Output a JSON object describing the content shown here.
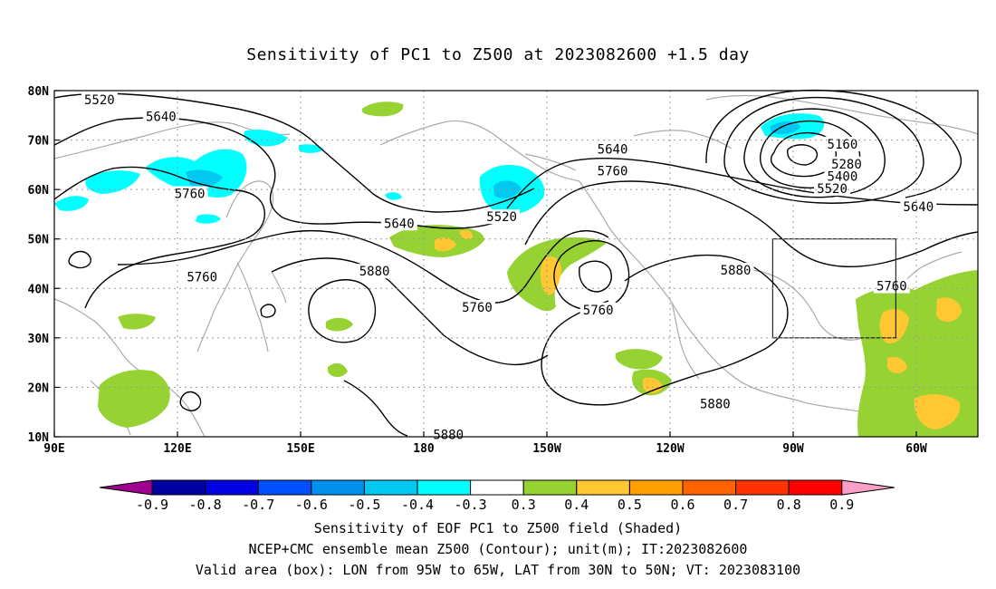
{
  "chart_data": {
    "type": "contour",
    "title": "Sensitivity of PC1 to Z500 at 2023082600 +1.5 day",
    "x_ticks": [
      "90E",
      "120E",
      "150E",
      "180",
      "150W",
      "120W",
      "90W",
      "60W"
    ],
    "x_tick_lon": [
      90,
      120,
      150,
      180,
      210,
      240,
      270,
      300
    ],
    "y_ticks": [
      "80N",
      "70N",
      "60N",
      "50N",
      "40N",
      "30N",
      "20N",
      "10N"
    ],
    "y_tick_lat": [
      80,
      70,
      60,
      50,
      40,
      30,
      20,
      10
    ],
    "lon_range": [
      90,
      315
    ],
    "lat_range": [
      10,
      80
    ],
    "grid": true,
    "valid_box": {
      "lon": [
        265,
        295
      ],
      "lat": [
        30,
        50
      ]
    },
    "contour_labels": [
      {
        "text": "5520",
        "lon": 101,
        "lat": 78.2
      },
      {
        "text": "5640",
        "lon": 116,
        "lat": 74.8
      },
      {
        "text": "5760",
        "lon": 123,
        "lat": 59.2
      },
      {
        "text": "5640",
        "lon": 174,
        "lat": 53.2
      },
      {
        "text": "5760",
        "lon": 126,
        "lat": 42.3
      },
      {
        "text": "5880",
        "lon": 168,
        "lat": 43.5
      },
      {
        "text": "5520",
        "lon": 199,
        "lat": 54.5
      },
      {
        "text": "5760",
        "lon": 193,
        "lat": 36.2
      },
      {
        "text": "5760",
        "lon": 222.5,
        "lat": 35.7
      },
      {
        "text": "5640",
        "lon": 226,
        "lat": 68.2
      },
      {
        "text": "5760",
        "lon": 226,
        "lat": 63.8
      },
      {
        "text": "5880",
        "lon": 256,
        "lat": 43.7
      },
      {
        "text": "5880",
        "lon": 251,
        "lat": 16.7
      },
      {
        "text": "5880",
        "lon": 186,
        "lat": 10.5
      },
      {
        "text": "5160",
        "lon": 282,
        "lat": 69.2
      },
      {
        "text": "5280",
        "lon": 283,
        "lat": 65.2
      },
      {
        "text": "5400",
        "lon": 282,
        "lat": 62.7
      },
      {
        "text": "5520",
        "lon": 279.5,
        "lat": 60.2
      },
      {
        "text": "5640",
        "lon": 300.5,
        "lat": 56.5
      },
      {
        "text": "5760",
        "lon": 294,
        "lat": 40.5
      }
    ],
    "colorbar": {
      "labels": [
        "-0.9",
        "-0.8",
        "-0.7",
        "-0.6",
        "-0.5",
        "-0.4",
        "-0.3",
        "0.3",
        "0.4",
        "0.5",
        "0.6",
        "0.7",
        "0.8",
        "0.9"
      ],
      "colors": [
        "#a00090",
        "#0000a0",
        "#0000e0",
        "#0050ff",
        "#0090f0",
        "#00c8f0",
        "#00ffff",
        "#ffffff",
        "#96d232",
        "#ffc832",
        "#ffa000",
        "#ff6400",
        "#ff3200",
        "#ff0000",
        "#f8a0c8"
      ]
    }
  },
  "footer": {
    "line1": "Sensitivity of EOF PC1 to Z500 field (Shaded)",
    "line2": "NCEP+CMC ensemble mean Z500 (Contour); unit(m); IT:2023082600",
    "line3": "Valid area (box): LON from 95W to 65W, LAT from 30N to 50N; VT: 2023083100"
  }
}
